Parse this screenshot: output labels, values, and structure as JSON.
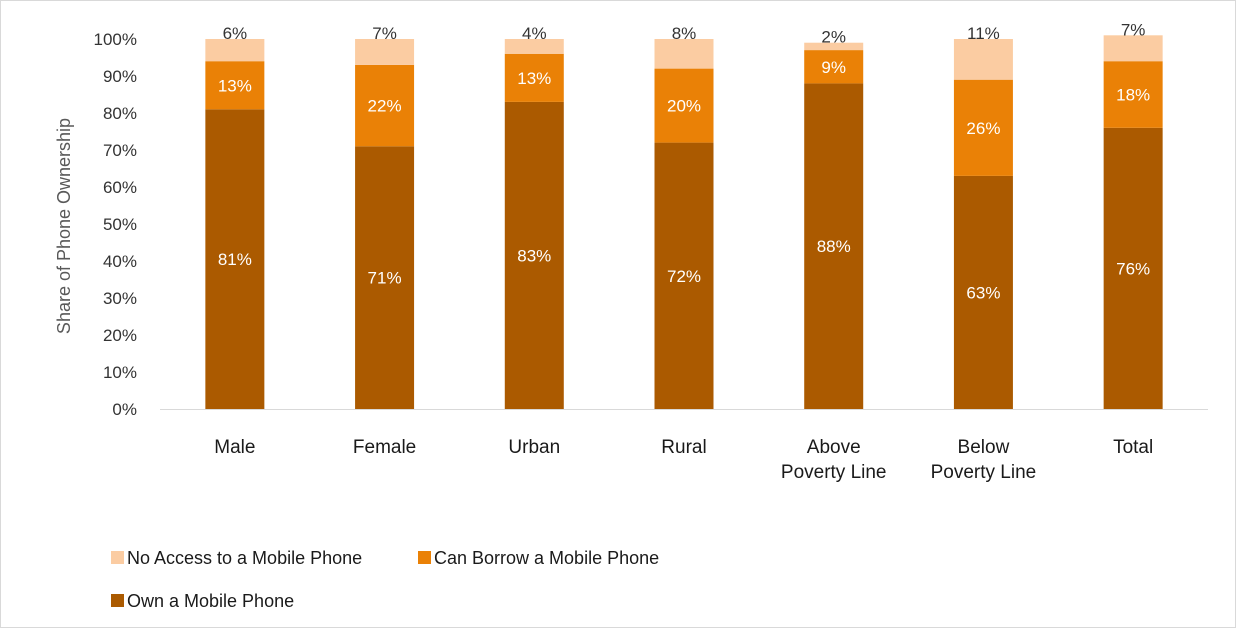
{
  "chart_data": {
    "type": "bar",
    "stacked": true,
    "ylabel": "Share of Phone Ownership",
    "xlabel": "",
    "ylim": [
      0,
      100
    ],
    "y_ticks": [
      "0%",
      "10%",
      "20%",
      "30%",
      "40%",
      "50%",
      "60%",
      "70%",
      "80%",
      "90%",
      "100%"
    ],
    "categories": [
      [
        "Male"
      ],
      [
        "Female"
      ],
      [
        "Urban"
      ],
      [
        "Rural"
      ],
      [
        "Above",
        "Poverty Line"
      ],
      [
        "Below",
        "Poverty Line"
      ],
      [
        "Total"
      ]
    ],
    "series": [
      {
        "name": "Own a Mobile Phone",
        "color": "#ab5a00",
        "label_color": "#ffffff",
        "values": [
          81,
          71,
          83,
          72,
          88,
          63,
          76
        ]
      },
      {
        "name": "Can Borrow a Mobile Phone",
        "color": "#ea8106",
        "label_color": "#ffffff",
        "values": [
          13,
          22,
          13,
          20,
          9,
          26,
          18
        ]
      },
      {
        "name": "No Access to a Mobile Phone",
        "color": "#fbcca2",
        "label_color": "#333333",
        "values": [
          6,
          7,
          4,
          8,
          2,
          11,
          7
        ]
      }
    ],
    "legend": {
      "placement": "bottom-left",
      "order": [
        "No Access to a Mobile Phone",
        "Can Borrow a Mobile Phone",
        "Own a Mobile Phone"
      ]
    },
    "grid": false
  }
}
